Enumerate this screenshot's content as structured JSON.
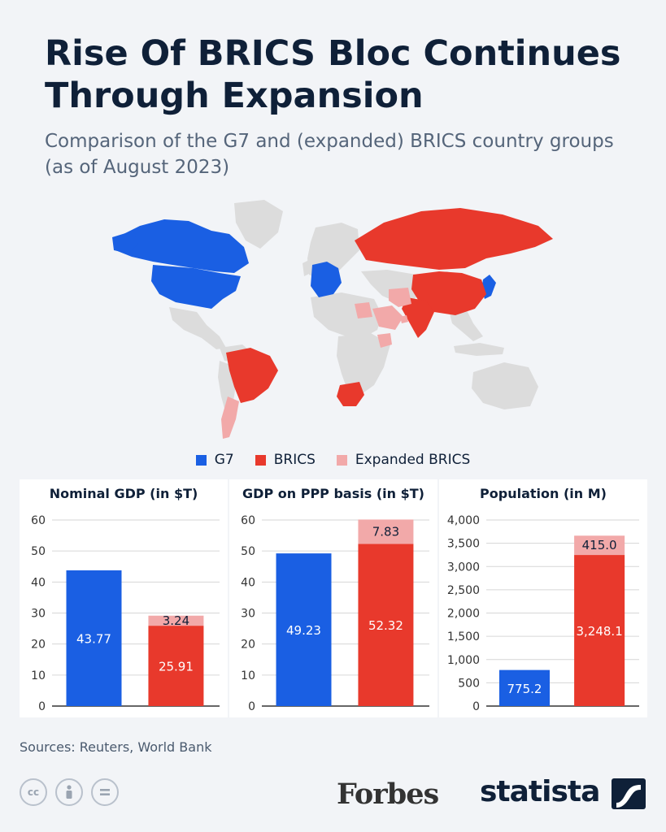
{
  "header": {
    "title": "Rise Of BRICS Bloc Continues Through Expansion",
    "subtitle": "Comparison of the G7 and (expanded) BRICS country groups (as of August 2023)"
  },
  "colors": {
    "g7": "#1a5fe3",
    "brics": "#e8392c",
    "expanded": "#f2a9a9",
    "accent": "#1a5fe3",
    "other_land": "#dcdcdc"
  },
  "legend": [
    {
      "label": "G7",
      "color": "#1a5fe3"
    },
    {
      "label": "BRICS",
      "color": "#e8392c"
    },
    {
      "label": "Expanded BRICS",
      "color": "#f2a9a9"
    }
  ],
  "chart_data": [
    {
      "type": "bar",
      "title": "Nominal GDP (in $T)",
      "categories": [
        "G7",
        "BRICS"
      ],
      "series": [
        {
          "name": "G7",
          "values": [
            43.77,
            null
          ],
          "labels": [
            "43.77",
            ""
          ]
        },
        {
          "name": "BRICS",
          "values": [
            null,
            25.91
          ],
          "labels": [
            "",
            "25.91"
          ]
        },
        {
          "name": "Expanded BRICS",
          "values": [
            null,
            3.24
          ],
          "labels": [
            "",
            "3.24"
          ]
        }
      ],
      "stacked": true,
      "ylim": [
        0,
        60
      ],
      "yticks": [
        0,
        10,
        20,
        30,
        40,
        50,
        60
      ],
      "ytick_labels": [
        "0",
        "10",
        "20",
        "30",
        "40",
        "50",
        "60"
      ],
      "grid": true
    },
    {
      "type": "bar",
      "title": "GDP on PPP basis (in $T)",
      "categories": [
        "G7",
        "BRICS"
      ],
      "series": [
        {
          "name": "G7",
          "values": [
            49.23,
            null
          ],
          "labels": [
            "49.23",
            ""
          ]
        },
        {
          "name": "BRICS",
          "values": [
            null,
            52.32
          ],
          "labels": [
            "",
            "52.32"
          ]
        },
        {
          "name": "Expanded BRICS",
          "values": [
            null,
            7.83
          ],
          "labels": [
            "",
            "7.83"
          ]
        }
      ],
      "stacked": true,
      "ylim": [
        0,
        60
      ],
      "yticks": [
        0,
        10,
        20,
        30,
        40,
        50,
        60
      ],
      "ytick_labels": [
        "0",
        "10",
        "20",
        "30",
        "40",
        "50",
        "60"
      ],
      "grid": true
    },
    {
      "type": "bar",
      "title": "Population (in M)",
      "categories": [
        "G7",
        "BRICS"
      ],
      "series": [
        {
          "name": "G7",
          "values": [
            775.2,
            null
          ],
          "labels": [
            "775.2",
            ""
          ]
        },
        {
          "name": "BRICS",
          "values": [
            null,
            3248.1
          ],
          "labels": [
            "",
            "3,248.1"
          ]
        },
        {
          "name": "Expanded BRICS",
          "values": [
            null,
            415.0
          ],
          "labels": [
            "",
            "415.0"
          ]
        }
      ],
      "stacked": true,
      "ylim": [
        0,
        4000
      ],
      "yticks": [
        0,
        500,
        1000,
        1500,
        2000,
        2500,
        3000,
        3500,
        4000
      ],
      "ytick_labels": [
        "0",
        "500",
        "1,000",
        "1,500",
        "2,000",
        "2,500",
        "3,000",
        "3,500",
        "4,000"
      ],
      "grid": true
    }
  ],
  "footer": {
    "sources": "Sources: Reuters, World Bank",
    "forbes_logo": "Forbes",
    "statista_logo": "statista",
    "license_icons": [
      "cc-icon",
      "attribution-icon",
      "no-derivatives-icon"
    ]
  }
}
